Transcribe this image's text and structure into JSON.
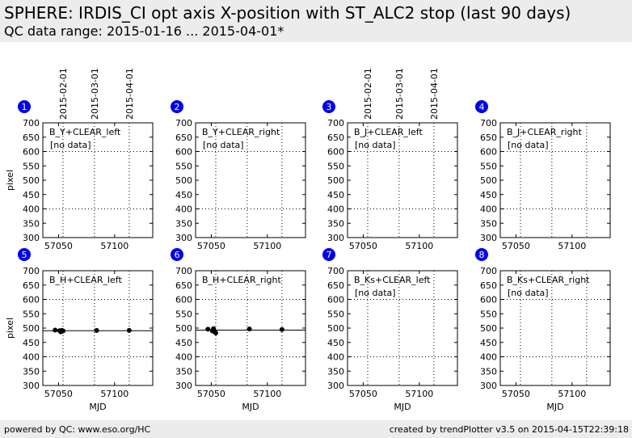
{
  "header": {
    "title": "SPHERE: IRDIS_CI opt axis X-position with ST_ALC2 stop (last 90 days)",
    "subtitle": "QC data range: 2015-01-16 ... 2015-04-01*"
  },
  "footer": {
    "left": "powered by QC: www.eso.org/HC",
    "right": "created by trendPlotter v3.5 on 2015-04-15T22:39:18"
  },
  "colors": {
    "header_bg": "#ececec",
    "badge": "#0000ee",
    "marker": "#000000"
  },
  "chart_data": [
    {
      "id": "1",
      "type": "scatter",
      "label": "B_Y+CLEAR_left",
      "no_data_text": "[no data]",
      "ylabel": "pixel",
      "xlabel": "",
      "xlim": [
        57036,
        57134
      ],
      "ylim": [
        300,
        700
      ],
      "yticks": [
        300,
        350,
        400,
        450,
        500,
        550,
        600,
        650,
        700
      ],
      "xticks": [
        57050,
        57100
      ],
      "x": [],
      "y": [],
      "ref_line": null,
      "date_labels": [
        "2015-02-01",
        "2015-03-01",
        "2015-04-01"
      ],
      "date_lines_mjd": [
        57054,
        57082,
        57113
      ],
      "hgrid": [
        400,
        600
      ],
      "grid": "dotted"
    },
    {
      "id": "2",
      "type": "scatter",
      "label": "B_Y+CLEAR_right",
      "no_data_text": "[no data]",
      "ylabel": "",
      "xlabel": "",
      "xlim": [
        57036,
        57134
      ],
      "ylim": [
        300,
        700
      ],
      "yticks": [
        300,
        350,
        400,
        450,
        500,
        550,
        600,
        650,
        700
      ],
      "xticks": [
        57050,
        57100
      ],
      "x": [],
      "y": [],
      "ref_line": null,
      "date_labels": [],
      "date_lines_mjd": [
        57054,
        57082,
        57113
      ],
      "hgrid": [
        400,
        600
      ],
      "grid": "dotted"
    },
    {
      "id": "3",
      "type": "scatter",
      "label": "B_J+CLEAR_left",
      "no_data_text": "[no data]",
      "ylabel": "",
      "xlabel": "",
      "xlim": [
        57036,
        57134
      ],
      "ylim": [
        300,
        700
      ],
      "yticks": [
        300,
        350,
        400,
        450,
        500,
        550,
        600,
        650,
        700
      ],
      "xticks": [
        57050,
        57100
      ],
      "x": [],
      "y": [],
      "ref_line": null,
      "date_labels": [
        "2015-02-01",
        "2015-03-01",
        "2015-04-01"
      ],
      "date_lines_mjd": [
        57054,
        57082,
        57113
      ],
      "hgrid": [
        400,
        600
      ],
      "grid": "dotted"
    },
    {
      "id": "4",
      "type": "scatter",
      "label": "B_J+CLEAR_right",
      "no_data_text": "[no data]",
      "ylabel": "",
      "xlabel": "",
      "xlim": [
        57036,
        57134
      ],
      "ylim": [
        300,
        700
      ],
      "yticks": [
        300,
        350,
        400,
        450,
        500,
        550,
        600,
        650,
        700
      ],
      "xticks": [
        57050,
        57100
      ],
      "x": [],
      "y": [],
      "ref_line": null,
      "date_labels": [],
      "date_lines_mjd": [
        57054,
        57082,
        57113
      ],
      "hgrid": [
        400,
        600
      ],
      "grid": "dotted"
    },
    {
      "id": "5",
      "type": "scatter",
      "label": "B_H+CLEAR_left",
      "no_data_text": "",
      "ylabel": "pixel",
      "xlabel": "MJD",
      "xlim": [
        57036,
        57134
      ],
      "ylim": [
        300,
        700
      ],
      "yticks": [
        300,
        350,
        400,
        450,
        500,
        550,
        600,
        650,
        700
      ],
      "xticks": [
        57050,
        57100
      ],
      "x": [
        57047,
        57051,
        57052,
        57053,
        57054,
        57084,
        57113
      ],
      "y": [
        493,
        491,
        487,
        492,
        490,
        492,
        492
      ],
      "ref_line": 491,
      "date_labels": [],
      "date_lines_mjd": [
        57054,
        57082,
        57113
      ],
      "hgrid": [
        400,
        600
      ],
      "grid": "dotted"
    },
    {
      "id": "6",
      "type": "scatter",
      "label": "B_H+CLEAR_right",
      "no_data_text": "",
      "ylabel": "",
      "xlabel": "MJD",
      "xlim": [
        57036,
        57134
      ],
      "ylim": [
        300,
        700
      ],
      "yticks": [
        300,
        350,
        400,
        450,
        500,
        550,
        600,
        650,
        700
      ],
      "xticks": [
        57050,
        57100
      ],
      "x": [
        57047,
        57051,
        57052,
        57053,
        57054,
        57084,
        57113
      ],
      "y": [
        496,
        490,
        498,
        487,
        483,
        497,
        495
      ],
      "ref_line": 493,
      "date_labels": [],
      "date_lines_mjd": [
        57054,
        57082,
        57113
      ],
      "hgrid": [
        400,
        600
      ],
      "grid": "dotted"
    },
    {
      "id": "7",
      "type": "scatter",
      "label": "B_Ks+CLEAR_left",
      "no_data_text": "[no data]",
      "ylabel": "",
      "xlabel": "MJD",
      "xlim": [
        57036,
        57134
      ],
      "ylim": [
        300,
        700
      ],
      "yticks": [
        300,
        350,
        400,
        450,
        500,
        550,
        600,
        650,
        700
      ],
      "xticks": [
        57050,
        57100
      ],
      "x": [],
      "y": [],
      "ref_line": null,
      "date_labels": [],
      "date_lines_mjd": [
        57054,
        57082,
        57113
      ],
      "hgrid": [
        400,
        600
      ],
      "grid": "dotted"
    },
    {
      "id": "8",
      "type": "scatter",
      "label": "B_Ks+CLEAR_right",
      "no_data_text": "[no data]",
      "ylabel": "",
      "xlabel": "MJD",
      "xlim": [
        57036,
        57134
      ],
      "ylim": [
        300,
        700
      ],
      "yticks": [
        300,
        350,
        400,
        450,
        500,
        550,
        600,
        650,
        700
      ],
      "xticks": [
        57050,
        57100
      ],
      "x": [],
      "y": [],
      "ref_line": null,
      "date_labels": [],
      "date_lines_mjd": [
        57054,
        57082,
        57113
      ],
      "hgrid": [
        400,
        600
      ],
      "grid": "dotted"
    }
  ]
}
